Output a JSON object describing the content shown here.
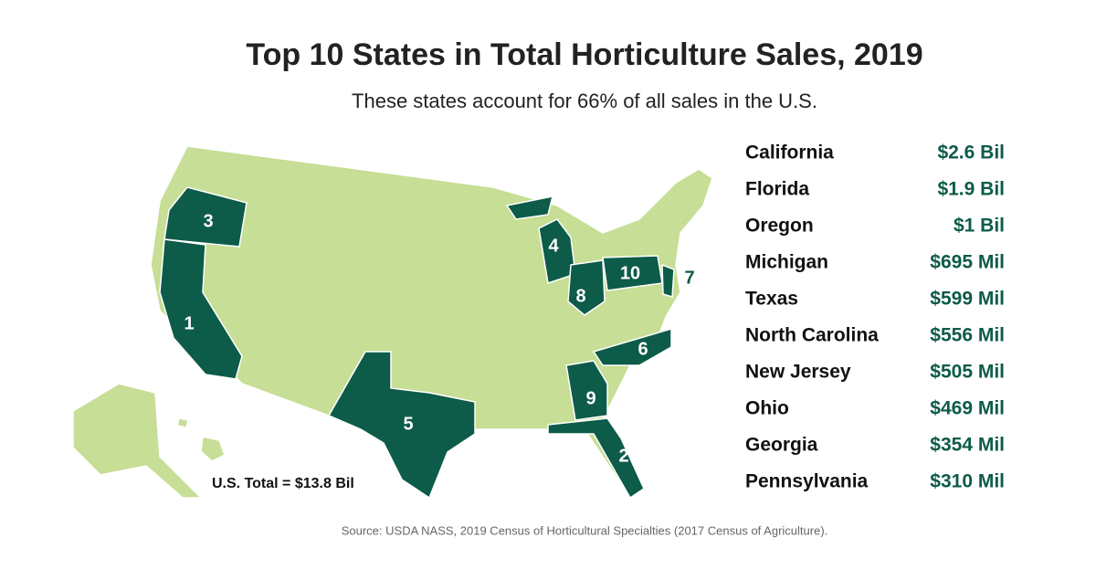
{
  "title": "Top 10 States in Total Horticulture Sales, 2019",
  "subtitle": "These states account for 66% of all sales in the U.S.",
  "states": [
    {
      "rank": "1",
      "name": "California",
      "sales": "$2.6 Bil"
    },
    {
      "rank": "2",
      "name": "Florida",
      "sales": "$1.9 Bil"
    },
    {
      "rank": "3",
      "name": "Oregon",
      "sales": "$1 Bil"
    },
    {
      "rank": "4",
      "name": "Michigan",
      "sales": "$695 Mil"
    },
    {
      "rank": "5",
      "name": "Texas",
      "sales": "$599 Mil"
    },
    {
      "rank": "6",
      "name": "North Carolina",
      "sales": "$556 Mil"
    },
    {
      "rank": "7",
      "name": "New Jersey",
      "sales": "$505 Mil"
    },
    {
      "rank": "8",
      "name": "Ohio",
      "sales": "$469 Mil"
    },
    {
      "rank": "9",
      "name": "Georgia",
      "sales": "$354 Mil"
    },
    {
      "rank": "10",
      "name": "Pennsylvania",
      "sales": "$310 Mil"
    }
  ],
  "total": "U.S. Total = $13.8 Bil",
  "source": "Source: USDA NASS, 2019 Census of Horticultural Specialties (2017 Census of Agriculture)."
}
